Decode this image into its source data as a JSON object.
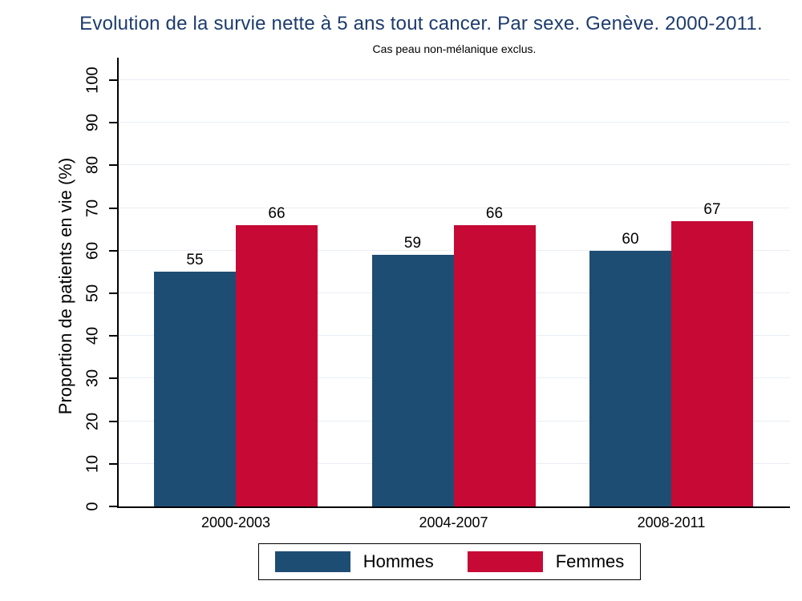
{
  "chart_data": {
    "type": "bar",
    "title": "Evolution de la survie nette à 5 ans tout cancer. Par sexe. Genève. 2000-2011.",
    "subtitle": "Cas peau non-mélanique exclus.",
    "categories": [
      "2000-2003",
      "2004-2007",
      "2008-2011"
    ],
    "series": [
      {
        "name": "Hommes",
        "color": "#1e4d74",
        "values": [
          55,
          59,
          60
        ]
      },
      {
        "name": "Femmes",
        "color": "#c60a35",
        "values": [
          66,
          66,
          67
        ]
      }
    ],
    "xlabel": "",
    "ylabel": "Proportion de patients en vie (%)",
    "ylim": [
      0,
      100
    ],
    "ytick_step": 10,
    "ytick_label_angle": 90,
    "grid": true,
    "bar_value_labels": true,
    "legend_position": "bottom"
  },
  "colors": {
    "title_text": "#1d3c6e",
    "axis_line": "#000000",
    "gridline": "#e9eef5",
    "background": "#ffffff"
  }
}
